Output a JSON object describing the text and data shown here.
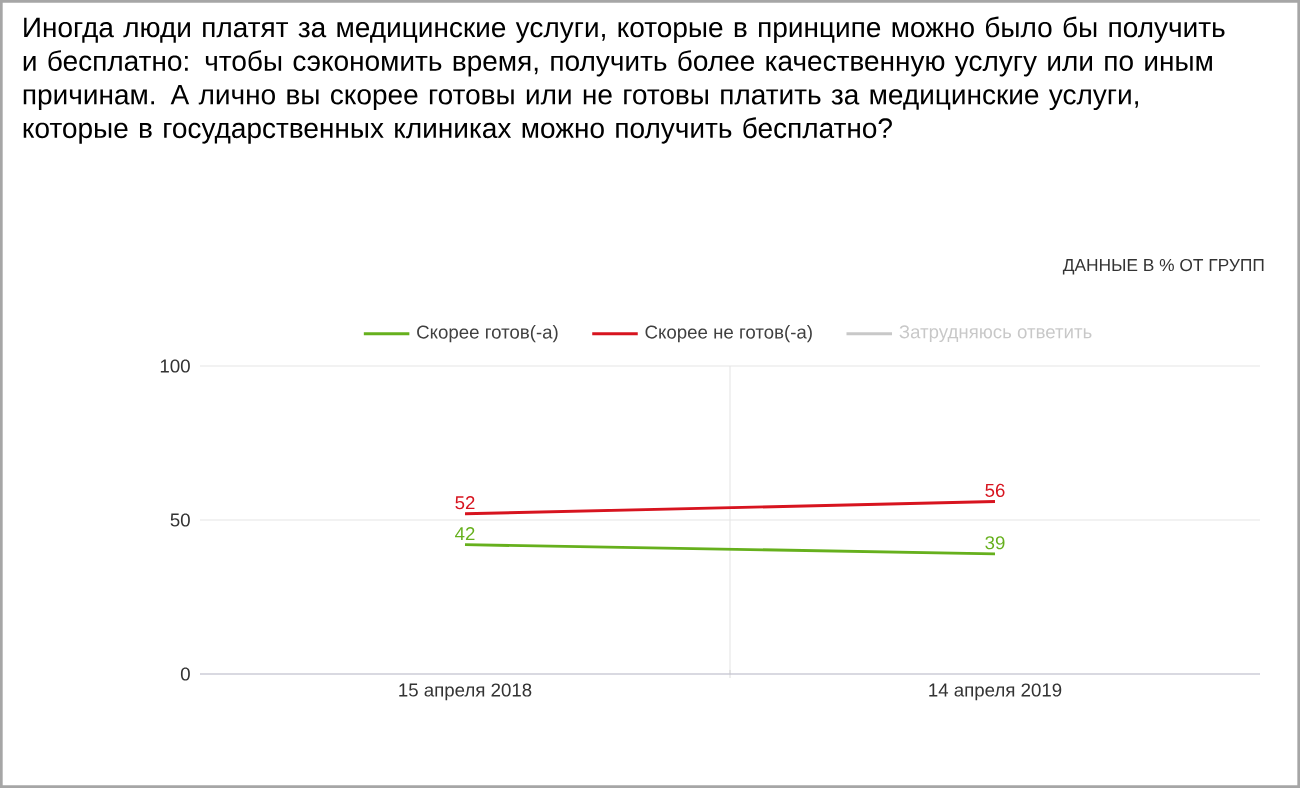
{
  "chart_data": {
    "type": "line",
    "title": "Иногда люди платят за медицинские услуги, которые в принципе можно было бы получить и бесплатно: чтобы сэкономить время, получить более качественную услугу или по иным причинам. А лично вы скорее готовы или не готовы платить за медицинские услуги, которые в государственных клиниках можно получить бесплатно?",
    "subtitle": "ДАННЫЕ В % ОТ ГРУПП",
    "categories": [
      "15 апреля 2018",
      "14 апреля 2019"
    ],
    "series": [
      {
        "name": "Скорее готов(-а)",
        "color": "#66b01d",
        "values": [
          42,
          39
        ]
      },
      {
        "name": "Скорее не готов(-а)",
        "color": "#d7141f",
        "values": [
          52,
          56
        ]
      },
      {
        "name": "Затрудняюсь ответить",
        "color": "#c8c8c8",
        "values": [
          null,
          null
        ]
      }
    ],
    "ylim": [
      0,
      100
    ],
    "yticks": [
      0,
      50,
      100
    ],
    "grid": true,
    "legend": "top",
    "data_labels": true,
    "marker": "none",
    "line_style": "solid"
  }
}
